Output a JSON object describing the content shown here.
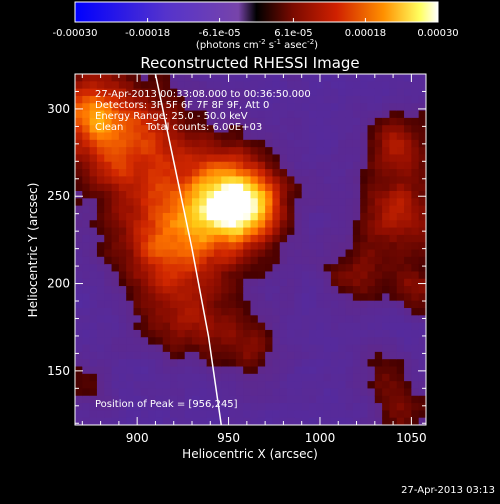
{
  "colorbar": {
    "tick_labels": [
      "-0.00030",
      "-0.00018",
      "-6.1e-05",
      "6.1e-05",
      "0.00018",
      "0.00030"
    ],
    "tick_values": [
      -0.0003,
      -0.00018,
      -6.1e-05,
      6.1e-05,
      0.00018,
      0.0003
    ],
    "range": [
      -0.0003,
      0.0003
    ],
    "units_main": "(photons cm",
    "units_exp1": "-2",
    "units_mid": " s",
    "units_exp2": "-1",
    "units_tail": " asec",
    "units_exp3": "-2",
    "units_close": ")"
  },
  "title": "Reconstructed RHESSI Image",
  "annotations": {
    "line1": "27-Apr-2013 00:33:08.000 to 00:36:50.000",
    "line2": "Detectors: 3F 5F 6F 7F 8F 9F, Att 0",
    "line3": "Energy Range: 25.0 - 50.0 keV",
    "line4_method": "Clean",
    "line4_counts": "Total counts: 6.00E+03",
    "peak": "Position of Peak = [956,245]"
  },
  "axes": {
    "xlabel": "Heliocentric X (arcsec)",
    "ylabel": "Heliocentric Y (arcsec)",
    "xlim": [
      866,
      1058
    ],
    "ylim": [
      119,
      320
    ],
    "x_tick_labels": [
      "900",
      "950",
      "1000",
      "1050"
    ],
    "x_ticks": [
      900,
      950,
      1000,
      1050
    ],
    "y_tick_labels": [
      "150",
      "200",
      "250",
      "300"
    ],
    "y_ticks": [
      150,
      200,
      250,
      300
    ]
  },
  "timestamp": "27-Apr-2013 03:13",
  "colors": {
    "background": "#000000",
    "foreground": "#ffffff",
    "limb": "#ffffff"
  },
  "image": {
    "peak": [
      956,
      245
    ],
    "blobs": [
      {
        "x": 956,
        "y": 245,
        "s": 15,
        "a": 1.0
      },
      {
        "x": 935,
        "y": 245,
        "s": 30,
        "a": 0.6
      },
      {
        "x": 890,
        "y": 285,
        "s": 24,
        "a": 0.65
      },
      {
        "x": 872,
        "y": 300,
        "s": 14,
        "a": 0.45
      },
      {
        "x": 915,
        "y": 218,
        "s": 20,
        "a": 0.45
      },
      {
        "x": 925,
        "y": 178,
        "s": 16,
        "a": 0.4
      },
      {
        "x": 960,
        "y": 165,
        "s": 14,
        "a": 0.38
      },
      {
        "x": 1043,
        "y": 240,
        "s": 16,
        "a": 0.6
      },
      {
        "x": 1043,
        "y": 280,
        "s": 13,
        "a": 0.5
      },
      {
        "x": 1018,
        "y": 205,
        "s": 12,
        "a": 0.4
      },
      {
        "x": 1050,
        "y": 198,
        "s": 10,
        "a": 0.4
      },
      {
        "x": 1035,
        "y": 150,
        "s": 11,
        "a": 0.3
      },
      {
        "x": 1045,
        "y": 128,
        "s": 10,
        "a": 0.4
      },
      {
        "x": 870,
        "y": 140,
        "s": 10,
        "a": 0.3
      }
    ],
    "noise_amplitude": 0.3,
    "floor": -0.22
  },
  "limb": {
    "points": [
      [
        910,
        320
      ],
      [
        920,
        270
      ],
      [
        930,
        220
      ],
      [
        939,
        170
      ],
      [
        946,
        119
      ]
    ]
  }
}
